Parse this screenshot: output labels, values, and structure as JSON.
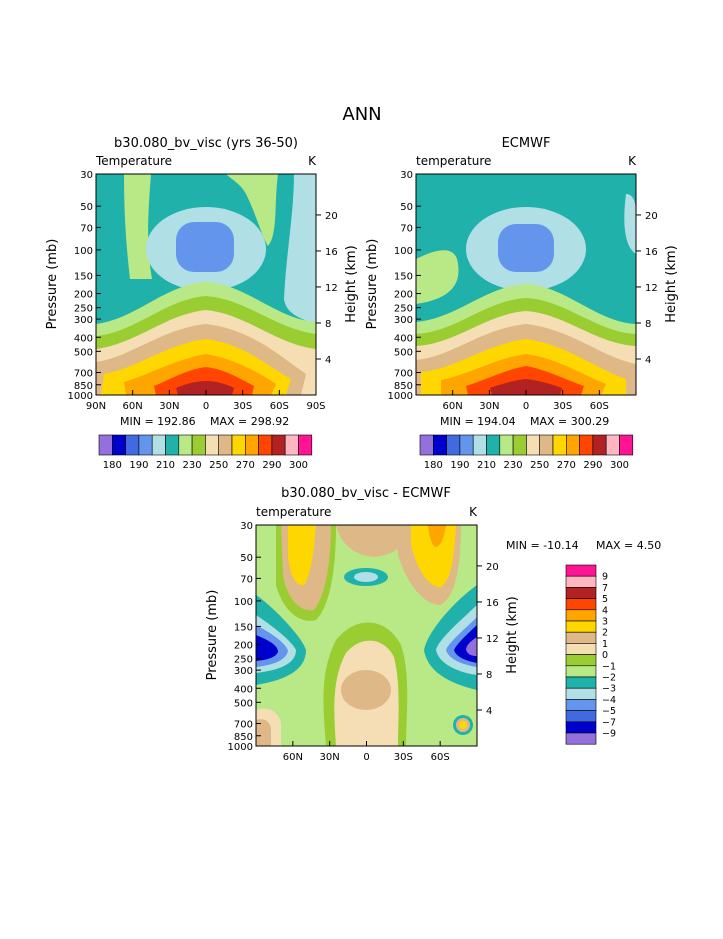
{
  "page_title": "ANN",
  "colors": {
    "absolute_scale": [
      "#9370db",
      "#0000cd",
      "#4169e1",
      "#6495ed",
      "#b0e0e6",
      "#20b2aa",
      "#b8e986",
      "#9acd32",
      "#f5deb3",
      "#deb887",
      "#ffd700",
      "#ffa500",
      "#ff4500",
      "#b22222",
      "#ffb6c1",
      "#ff1493"
    ],
    "difference_scale": [
      "#9370db",
      "#0000cd",
      "#4169e1",
      "#6495ed",
      "#b0e0e6",
      "#20b2aa",
      "#b8e986",
      "#9acd32",
      "#f5deb3",
      "#deb887",
      "#ffd700",
      "#ffa500",
      "#ff4500",
      "#b22222",
      "#ffb6c1",
      "#ff1493"
    ]
  },
  "chart_data": [
    {
      "type": "heatmap",
      "title": "b30.080_bv_visc (yrs 36-50)",
      "field_label": "Temperature",
      "units": "K",
      "ylabel": "Pressure (mb)",
      "y2label": "Height (km)",
      "x_ticks": [
        "90N",
        "60N",
        "30N",
        "0",
        "30S",
        "60S",
        "90S"
      ],
      "y_ticks": [
        "30",
        "50",
        "70",
        "100",
        "150",
        "200",
        "250",
        "300",
        "400",
        "500",
        "700",
        "850",
        "1000"
      ],
      "y2_ticks": [
        "20",
        "16",
        "12",
        "8",
        "4"
      ],
      "min_label": "MIN = 192.86",
      "max_label": "MAX = 298.92",
      "min": 192.86,
      "max": 298.92,
      "colorbar_labels": [
        "180",
        "190",
        "210",
        "230",
        "250",
        "270",
        "290",
        "300"
      ]
    },
    {
      "type": "heatmap",
      "title": "ECMWF",
      "field_label": "temperature",
      "units": "K",
      "ylabel": "Pressure (mb)",
      "y2label": "Height (km)",
      "x_ticks": [
        "60N",
        "30N",
        "0",
        "30S",
        "60S"
      ],
      "y_ticks": [
        "30",
        "50",
        "70",
        "100",
        "150",
        "200",
        "250",
        "300",
        "400",
        "500",
        "700",
        "850",
        "1000"
      ],
      "y2_ticks": [
        "20",
        "16",
        "12",
        "8",
        "4"
      ],
      "min_label": "MIN = 194.04",
      "max_label": "MAX = 300.29",
      "min": 194.04,
      "max": 300.29,
      "colorbar_labels": [
        "180",
        "190",
        "210",
        "230",
        "250",
        "270",
        "290",
        "300"
      ]
    },
    {
      "type": "heatmap",
      "title": "b30.080_bv_visc - ECMWF",
      "field_label": "temperature",
      "units": "K",
      "ylabel": "Pressure (mb)",
      "y2label": "Height (km)",
      "x_ticks": [
        "60N",
        "30N",
        "0",
        "30S",
        "60S"
      ],
      "y_ticks": [
        "30",
        "50",
        "70",
        "100",
        "150",
        "200",
        "250",
        "300",
        "400",
        "500",
        "700",
        "850",
        "1000"
      ],
      "y2_ticks": [
        "20",
        "16",
        "12",
        "8",
        "4"
      ],
      "min_label": "MIN = -10.14",
      "max_label": "MAX =    4.50",
      "min": -10.14,
      "max": 4.5,
      "colorbar_labels": [
        "9",
        "7",
        "5",
        "4",
        "3",
        "2",
        "1",
        "0",
        "−1",
        "−2",
        "−3",
        "−4",
        "−5",
        "−7",
        "−9"
      ]
    }
  ]
}
